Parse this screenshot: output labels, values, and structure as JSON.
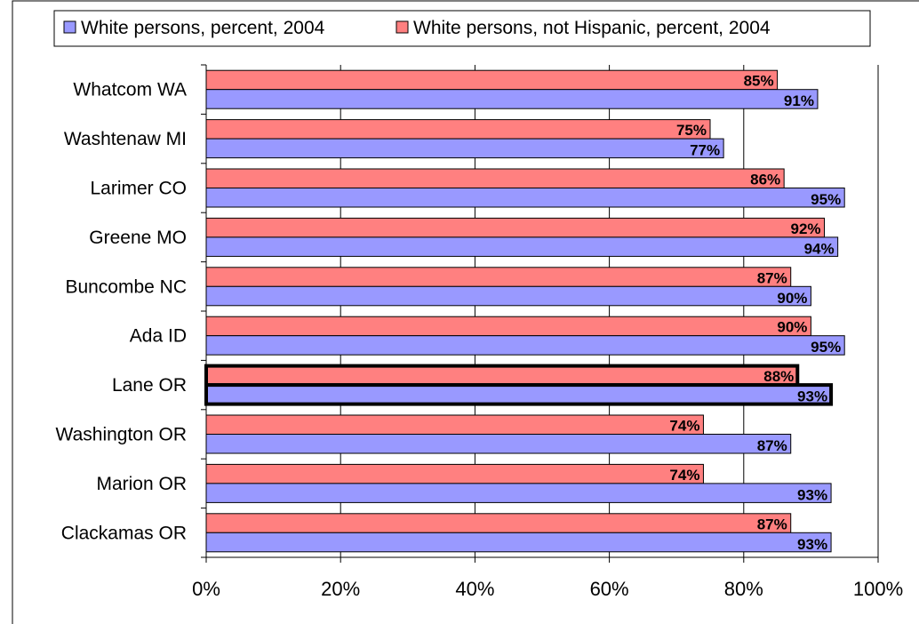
{
  "chart_data": {
    "type": "bar",
    "orientation": "horizontal",
    "categories": [
      "Whatcom WA",
      "Washtenaw MI",
      "Larimer CO",
      "Greene MO",
      "Buncombe NC",
      "Ada ID",
      "Lane OR",
      "Washington OR",
      "Marion OR",
      "Clackamas OR"
    ],
    "series": [
      {
        "name": "White persons, percent, 2004",
        "color": "#9999ff",
        "values": [
          91,
          77,
          95,
          94,
          90,
          95,
          93,
          87,
          93,
          93
        ],
        "labels": [
          "91%",
          "77%",
          "95%",
          "94%",
          "90%",
          "95%",
          "93%",
          "87%",
          "93%",
          "93%"
        ]
      },
      {
        "name": "White persons, not Hispanic, percent, 2004",
        "color": "#ff8080",
        "values": [
          85,
          75,
          86,
          92,
          87,
          90,
          88,
          74,
          74,
          87
        ],
        "labels": [
          "85%",
          "75%",
          "86%",
          "92%",
          "87%",
          "90%",
          "88%",
          "74%",
          "74%",
          "87%"
        ]
      }
    ],
    "highlighted_category": "Lane OR",
    "xlim": [
      0,
      100
    ],
    "x_ticks": [
      "0%",
      "20%",
      "40%",
      "60%",
      "80%",
      "100%"
    ],
    "grid": "vertical",
    "legend_position": "top",
    "title": "",
    "xlabel": "",
    "ylabel": ""
  }
}
